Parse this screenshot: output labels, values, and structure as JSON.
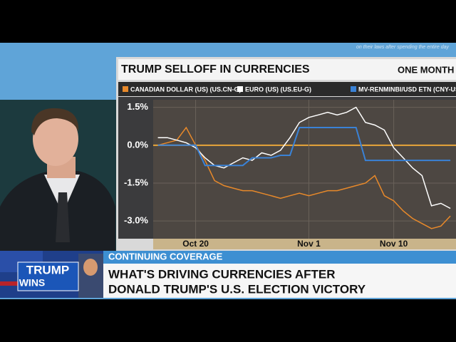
{
  "ticker": "on their laws after spending the entire day",
  "chart_data": {
    "type": "line",
    "title": "TRUMP SELLOFF IN CURRENCIES",
    "subtitle": "ONE MONTH",
    "x": [
      1,
      2,
      3,
      4,
      5,
      6,
      7,
      8,
      9,
      10,
      11,
      12,
      13,
      14,
      15,
      16,
      17,
      18,
      19,
      20,
      21,
      22,
      23,
      24,
      25,
      26,
      27,
      28,
      29,
      30,
      31,
      32
    ],
    "series": [
      {
        "name": "CANADIAN DOLLAR (US) (US.CN-G)",
        "color": "#e8892a",
        "values": [
          0.0,
          0.1,
          0.2,
          0.7,
          0.0,
          -0.6,
          -1.4,
          -1.6,
          -1.7,
          -1.8,
          -1.8,
          -1.9,
          -2.0,
          -2.1,
          -2.0,
          -1.9,
          -2.0,
          -1.9,
          -1.8,
          -1.8,
          -1.7,
          -1.6,
          -1.5,
          -1.2,
          -2.0,
          -2.2,
          -2.6,
          -2.9,
          -3.1,
          -3.3,
          -3.2,
          -2.8
        ]
      },
      {
        "name": "EURO (US) (US.EU-G)",
        "color": "#ffffff",
        "values": [
          0.3,
          0.3,
          0.2,
          0.1,
          -0.1,
          -0.5,
          -0.8,
          -0.9,
          -0.7,
          -0.5,
          -0.6,
          -0.3,
          -0.4,
          -0.2,
          0.3,
          0.9,
          1.1,
          1.2,
          1.3,
          1.2,
          1.3,
          1.5,
          0.9,
          0.8,
          0.6,
          -0.1,
          -0.5,
          -0.9,
          -1.2,
          -2.4,
          -2.3,
          -2.5
        ]
      },
      {
        "name": "MV-RENMINBI/USD ETN (CNY-US",
        "color": "#3a82d6",
        "values": [
          0.0,
          0.0,
          0.0,
          0.0,
          0.0,
          -0.8,
          -0.8,
          -0.8,
          -0.8,
          -0.8,
          -0.5,
          -0.5,
          -0.5,
          -0.4,
          -0.4,
          0.7,
          0.7,
          0.7,
          0.7,
          0.7,
          0.7,
          0.7,
          -0.6,
          -0.6,
          -0.6,
          -0.6,
          -0.6,
          -0.6,
          -0.6,
          -0.6,
          -0.6,
          -0.6
        ]
      }
    ],
    "xlim": [
      0.5,
      32.6
    ],
    "xticks": [
      {
        "value": 5,
        "label": "Oct 20"
      },
      {
        "value": 17,
        "label": "Nov 1"
      },
      {
        "value": 26,
        "label": "Nov 10"
      }
    ],
    "ylim": [
      -3.7,
      1.8
    ],
    "yticks": [
      {
        "value": 1.5,
        "label": "1.5%"
      },
      {
        "value": 0,
        "label": "0.0%"
      },
      {
        "value": -1.5,
        "label": "-1.5%"
      },
      {
        "value": -3,
        "label": "-3.0%"
      }
    ],
    "grid": true
  },
  "lower_third": {
    "tag": "CONTINUING COVERAGE",
    "headline": [
      "WHAT'S DRIVING CURRENCIES AFTER",
      "DONALD TRUMP'S U.S. ELECTION VICTORY"
    ],
    "logo": [
      "TRUMP",
      "WINS"
    ]
  }
}
